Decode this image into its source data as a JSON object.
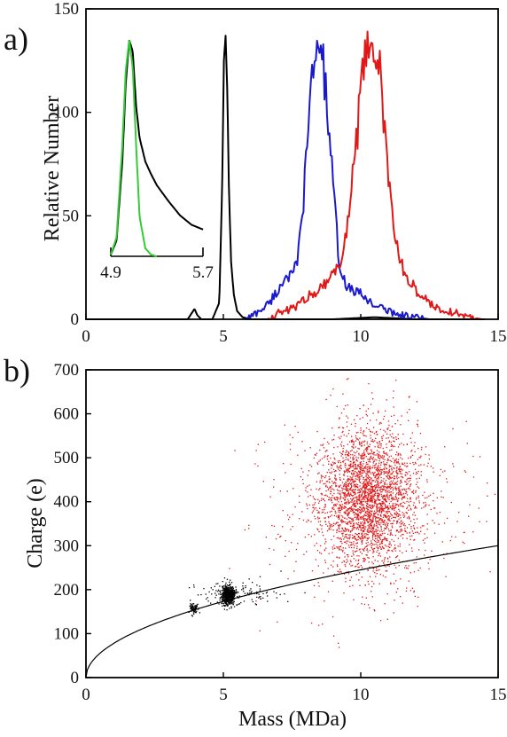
{
  "chart_data": [
    {
      "panel": "a)",
      "type": "line",
      "xlabel": "",
      "ylabel": "Relative Number",
      "xlim": [
        0,
        15
      ],
      "ylim": [
        0,
        150
      ],
      "xticks": [
        "0",
        "5",
        "10",
        "15"
      ],
      "yticks": [
        "0",
        "50",
        "100",
        "150"
      ],
      "grid": false,
      "series": [
        {
          "color": "#000000",
          "x": [
            0.0,
            1.0,
            2.0,
            3.0,
            3.7,
            3.85,
            3.95,
            4.05,
            4.2,
            4.6,
            4.85,
            4.95,
            5.02,
            5.08,
            5.14,
            5.2,
            5.28,
            5.38,
            5.5,
            5.7,
            6.0,
            7.0,
            9.0,
            10.5,
            12.0,
            14.5
          ],
          "y": [
            0,
            0,
            0,
            0,
            0,
            3,
            5,
            2,
            0,
            0,
            8,
            60,
            125,
            137,
            112,
            65,
            28,
            12,
            4,
            1,
            0,
            0,
            0,
            1,
            0,
            0
          ]
        },
        {
          "color": "#1a1acc",
          "x": [
            5.8,
            6.2,
            6.6,
            7.0,
            7.3,
            7.5,
            7.7,
            7.9,
            8.1,
            8.3,
            8.5,
            8.65,
            8.8,
            9.0,
            9.2,
            9.4,
            9.7,
            10.0,
            10.5,
            11.0,
            11.5,
            12.0,
            12.5
          ],
          "y": [
            0,
            3,
            7,
            14,
            22,
            20,
            28,
            55,
            95,
            125,
            137,
            120,
            100,
            62,
            30,
            18,
            14,
            12,
            7,
            4,
            2,
            1,
            0
          ]
        },
        {
          "color": "#e01818",
          "x": [
            6.6,
            7.0,
            7.5,
            8.0,
            8.5,
            9.0,
            9.3,
            9.6,
            9.8,
            10.0,
            10.2,
            10.35,
            10.5,
            10.7,
            10.9,
            11.1,
            11.3,
            11.6,
            12.0,
            12.5,
            13.0,
            13.5,
            14.0,
            14.4
          ],
          "y": [
            0,
            3,
            5,
            10,
            15,
            22,
            28,
            55,
            80,
            108,
            128,
            137,
            130,
            120,
            85,
            55,
            35,
            22,
            14,
            8,
            4,
            3,
            1,
            0
          ]
        }
      ],
      "inset": {
        "xlim": [
          4.9,
          5.7
        ],
        "xticks": [
          "4.9",
          "5.7"
        ],
        "series": [
          {
            "color": "#000000",
            "x": [
              4.9,
              4.95,
              5.0,
              5.03,
              5.06,
              5.09,
              5.12,
              5.15,
              5.2,
              5.25,
              5.3,
              5.4,
              5.5,
              5.6,
              5.7
            ],
            "y": [
              1,
              10,
              60,
              110,
              137,
              130,
              95,
              75,
              60,
              52,
              45,
              35,
              26,
              20,
              17
            ]
          },
          {
            "color": "#33cc33",
            "x": [
              4.9,
              4.95,
              5.0,
              5.03,
              5.06,
              5.09,
              5.12,
              5.15,
              5.2,
              5.25,
              5.3
            ],
            "y": [
              1,
              12,
              70,
              118,
              137,
              120,
              70,
              25,
              5,
              1,
              0
            ]
          }
        ]
      }
    },
    {
      "panel": "b)",
      "type": "scatter",
      "xlabel": "Mass (MDa)",
      "ylabel": "Charge (e)",
      "xlim": [
        0,
        15
      ],
      "ylim": [
        0,
        700
      ],
      "xticks": [
        "0",
        "5",
        "10",
        "15"
      ],
      "yticks": [
        "0",
        "100",
        "200",
        "300",
        "400",
        "500",
        "600",
        "700"
      ],
      "grid": false,
      "clusters": [
        {
          "color": "#000000",
          "center": [
            3.9,
            158
          ],
          "spread": [
            0.07,
            6
          ],
          "count": 80
        },
        {
          "color": "#000000",
          "center": [
            5.15,
            188
          ],
          "spread": [
            0.12,
            11
          ],
          "count": 550
        },
        {
          "color": "#000000",
          "center": [
            5.6,
            195
          ],
          "spread": [
            0.9,
            15
          ],
          "count": 120
        },
        {
          "color": "#e01818",
          "center": [
            10.3,
            410
          ],
          "spread": [
            0.85,
            80
          ],
          "count": 2600
        },
        {
          "color": "#e01818",
          "center": [
            10.2,
            380
          ],
          "spread": [
            1.9,
            110
          ],
          "count": 550
        }
      ],
      "curve": {
        "color": "#000000",
        "formula": "charge = 77.5 * mass^0.5",
        "coefficient": 77.5,
        "exponent": 0.5,
        "x_range": [
          0,
          15
        ]
      }
    }
  ]
}
